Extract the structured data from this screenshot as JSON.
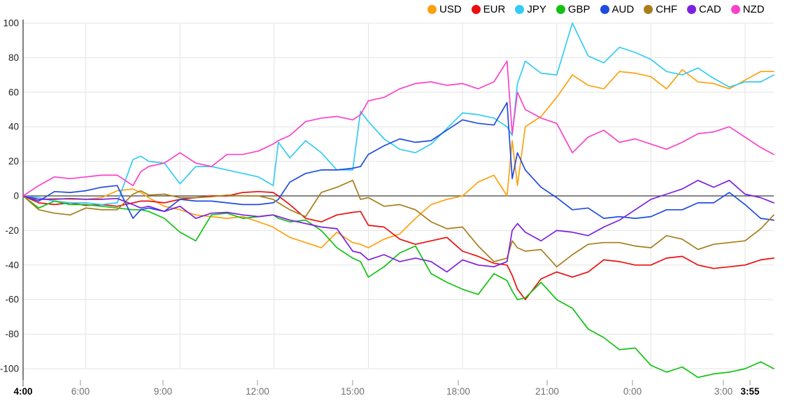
{
  "chart": {
    "legend": [
      {
        "label": "USD",
        "color": "#ffa00d"
      },
      {
        "label": "EUR",
        "color": "#ea0f0f"
      },
      {
        "label": "JPY",
        "color": "#33ccf5"
      },
      {
        "label": "GBP",
        "color": "#12c212"
      },
      {
        "label": "AUD",
        "color": "#1f4ce0"
      },
      {
        "label": "CHF",
        "color": "#a87d1a"
      },
      {
        "label": "CAD",
        "color": "#7d1fe0"
      },
      {
        "label": "NZD",
        "color": "#fb42c8"
      }
    ],
    "colors": {
      "background": "#ffffff",
      "grid": "#e3e3e3",
      "zero_line": "#3d3d3d",
      "axis": "#3d3d3d",
      "tick": "#9a9a9a",
      "x_label": "#6f6f6f",
      "x_label_strong": "#000000",
      "y_label": "#1f1f1f"
    }
  },
  "chart_data": {
    "type": "line",
    "title": "",
    "xlabel": "",
    "ylabel": "",
    "x_unit": "minutes since 04:00",
    "ylim": [
      -100,
      100
    ],
    "grid": true,
    "legend_position": "top-right",
    "y_ticks": [
      100,
      80,
      60,
      40,
      20,
      0,
      -20,
      -40,
      -60,
      -80,
      -100
    ],
    "x_ticks": [
      {
        "t": 0,
        "label": "4:00",
        "bold": true
      },
      {
        "t": 120,
        "label": "6:00",
        "bold": false
      },
      {
        "t": 300,
        "label": "9:00",
        "bold": false
      },
      {
        "t": 480,
        "label": "12:00",
        "bold": false
      },
      {
        "t": 660,
        "label": "15:00",
        "bold": false
      },
      {
        "t": 840,
        "label": "18:00",
        "bold": false
      },
      {
        "t": 1020,
        "label": "21:00",
        "bold": false
      },
      {
        "t": 1200,
        "label": "0:00",
        "bold": false
      },
      {
        "t": 1380,
        "label": "3:00",
        "bold": false
      },
      {
        "t": 1435,
        "label": "3:55",
        "bold": true
      }
    ],
    "grid_minutes": [
      120,
      300,
      480,
      660,
      840,
      1020,
      1200,
      1380
    ],
    "x": [
      0,
      30,
      60,
      90,
      120,
      150,
      180,
      210,
      225,
      240,
      270,
      300,
      330,
      360,
      390,
      420,
      450,
      478,
      488,
      510,
      540,
      570,
      600,
      630,
      645,
      660,
      690,
      720,
      750,
      780,
      810,
      840,
      870,
      900,
      925,
      935,
      945,
      960,
      990,
      1020,
      1050,
      1080,
      1110,
      1140,
      1170,
      1200,
      1230,
      1260,
      1290,
      1320,
      1350,
      1380,
      1410,
      1435
    ],
    "series": [
      {
        "name": "USD",
        "color": "#ffa00d",
        "values": [
          0,
          -2,
          -1.5,
          -2,
          -2,
          -1,
          3,
          4,
          2,
          -1,
          -6,
          -8,
          -11,
          -12,
          -13,
          -12,
          -15,
          -18,
          -20,
          -24,
          -27,
          -30,
          -21,
          -27,
          -28,
          -30,
          -25,
          -22,
          -13,
          -5,
          -2,
          0,
          8,
          12,
          0,
          32,
          6,
          40,
          46,
          57,
          70,
          64,
          62,
          72,
          71,
          69,
          62,
          73,
          66,
          65,
          62,
          67,
          72,
          72
        ]
      },
      {
        "name": "EUR",
        "color": "#ea0f0f",
        "values": [
          0,
          -4,
          -5,
          -4,
          -5.5,
          -5,
          -6,
          -4,
          -3,
          -3,
          -4,
          -2,
          -1,
          0,
          0,
          2,
          2.5,
          2,
          0,
          -5,
          -13,
          -15,
          -11,
          -9.5,
          -9,
          -17,
          -18,
          -25,
          -28,
          -26,
          -24,
          -32,
          -35,
          -39,
          -40,
          -46,
          -54,
          -60,
          -48,
          -44,
          -47,
          -44,
          -37,
          -38,
          -40,
          -40,
          -36,
          -35,
          -40,
          -42,
          -41,
          -40,
          -37,
          -36
        ]
      },
      {
        "name": "JPY",
        "color": "#33ccf5",
        "values": [
          0,
          -1,
          -3,
          -4,
          -4,
          -5,
          -4,
          21,
          23,
          20,
          19,
          7,
          17,
          17,
          15,
          13,
          11,
          6,
          31,
          22,
          32,
          25,
          15,
          15,
          49,
          43,
          33,
          27,
          25,
          30,
          39,
          48,
          47,
          45,
          40,
          35,
          65,
          78,
          71,
          70,
          100,
          81,
          77,
          86,
          83,
          79,
          72,
          70,
          74,
          68,
          63,
          66,
          66,
          70
        ]
      },
      {
        "name": "GBP",
        "color": "#12c212",
        "values": [
          0,
          -7,
          -3,
          -5,
          -5,
          -6,
          -7,
          -8,
          -8,
          -9,
          -13,
          -21,
          -26,
          -11,
          -10,
          -13,
          -12,
          -11,
          -13,
          -15,
          -14,
          -20,
          -30,
          -36,
          -38,
          -47,
          -41,
          -33,
          -29,
          -45,
          -50,
          -54,
          -57,
          -45,
          -49,
          -55,
          -60,
          -59,
          -50,
          -60,
          -65,
          -77,
          -82,
          -89,
          -88,
          -98,
          -102,
          -99,
          -105,
          -103,
          -102,
          -100,
          -96,
          -100
        ]
      },
      {
        "name": "AUD",
        "color": "#1f4ce0",
        "values": [
          0,
          -3,
          2.5,
          2,
          3,
          5,
          6,
          -13,
          -8,
          -7,
          -9,
          -2,
          -3,
          -3,
          -4,
          -5,
          -5,
          -4,
          -2,
          8,
          13,
          15,
          15,
          16,
          17,
          24,
          29,
          33,
          31,
          32,
          38,
          44,
          42,
          41,
          54,
          10,
          25,
          15,
          5,
          -1,
          -8,
          -7,
          -13,
          -12,
          -13,
          -12,
          -8,
          -8,
          -4,
          -4,
          2,
          -5,
          -13,
          -14
        ]
      },
      {
        "name": "CHF",
        "color": "#a87d1a",
        "values": [
          0,
          -8,
          -10,
          -11,
          -7,
          -8,
          -8,
          1,
          3,
          0.5,
          1,
          -1,
          -1,
          -0.5,
          0.5,
          0,
          0,
          -2,
          -4,
          -8,
          -12,
          2,
          5,
          9,
          -2,
          -1,
          -6,
          -5,
          -8,
          -15,
          -19,
          -18,
          -29,
          -38,
          -36,
          -26,
          -30,
          -32,
          -31,
          -41,
          -34,
          -28,
          -27,
          -27,
          -29,
          -30,
          -23,
          -25,
          -31,
          -28,
          -27,
          -26,
          -19,
          -11
        ]
      },
      {
        "name": "CAD",
        "color": "#7d1fe0",
        "values": [
          0,
          -2,
          -2,
          -1.5,
          -2,
          -2,
          -1.5,
          -5,
          -7,
          -6,
          -9,
          -6,
          -13,
          -10,
          -9.5,
          -11,
          -12,
          -11,
          -12,
          -14,
          -16,
          -18,
          -19,
          -32,
          -33,
          -37,
          -34,
          -38,
          -36,
          -38,
          -44,
          -37,
          -40,
          -41,
          -38,
          -20,
          -16,
          -21,
          -26,
          -20,
          -21,
          -23,
          -18,
          -14,
          -8,
          -2,
          1,
          4,
          9,
          5,
          9,
          1,
          -1,
          -4
        ]
      },
      {
        "name": "NZD",
        "color": "#fb42c8",
        "values": [
          0,
          6,
          11,
          10,
          11,
          12,
          12,
          6,
          14,
          17,
          19,
          25,
          19,
          17,
          24,
          24,
          26,
          30,
          32,
          35,
          43,
          45,
          46,
          44,
          47,
          55,
          57,
          62,
          65,
          66,
          64,
          65,
          62,
          66,
          78,
          36,
          60,
          50,
          45,
          42,
          25,
          34,
          38,
          31,
          33,
          30,
          27,
          31,
          36,
          37,
          40,
          34,
          28,
          24
        ]
      }
    ]
  }
}
